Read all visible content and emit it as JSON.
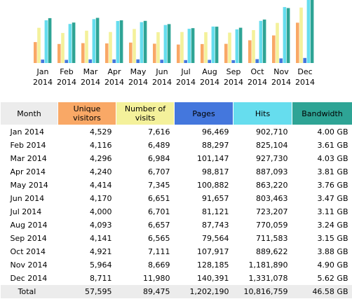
{
  "colors": {
    "visitors": "#f9a866",
    "visits": "#f4f19b",
    "pages": "#4477dd",
    "hits": "#66ddee",
    "bandwidth": "#2ea495",
    "header_bg": "#ececec",
    "total_bg": "#ececec"
  },
  "chart_data": {
    "type": "bar",
    "categories": [
      [
        "Jan",
        "2014"
      ],
      [
        "Feb",
        "2014"
      ],
      [
        "Mar",
        "2014"
      ],
      [
        "Apr",
        "2014"
      ],
      [
        "May",
        "2014"
      ],
      [
        "Jun",
        "2014"
      ],
      [
        "Jul",
        "2014"
      ],
      [
        "Aug",
        "2014"
      ],
      [
        "Sep",
        "2014"
      ],
      [
        "Oct",
        "2014"
      ],
      [
        "Nov",
        "2014"
      ],
      [
        "Dec",
        "2014"
      ]
    ],
    "series": [
      {
        "key": "visitors",
        "values": [
          4529,
          4116,
          4296,
          4240,
          4414,
          4170,
          4000,
          4093,
          4141,
          4921,
          5964,
          8711
        ]
      },
      {
        "key": "visits",
        "values": [
          7616,
          6489,
          6984,
          6707,
          7345,
          6651,
          6701,
          6657,
          6565,
          7111,
          8669,
          11980
        ]
      },
      {
        "key": "pages",
        "values": [
          96469,
          88297,
          101147,
          98817,
          100882,
          91657,
          81121,
          87743,
          79564,
          107917,
          128185,
          140391
        ]
      },
      {
        "key": "hits",
        "values": [
          902710,
          825104,
          927730,
          887093,
          863220,
          803463,
          723207,
          770059,
          711583,
          889622,
          1181890,
          1331078
        ]
      },
      {
        "key": "bandwidth",
        "values": [
          4.0,
          3.61,
          4.03,
          3.81,
          3.76,
          3.47,
          3.11,
          3.24,
          3.15,
          3.88,
          4.9,
          5.62
        ]
      }
    ],
    "grid": false,
    "legend": "none"
  },
  "table": {
    "headers": {
      "month": "Month",
      "visitors": [
        "Unique",
        "visitors"
      ],
      "visits": [
        "Number of",
        "visits"
      ],
      "pages": "Pages",
      "hits": "Hits",
      "bandwidth": "Bandwidth"
    },
    "rows": [
      [
        "Jan 2014",
        "4,529",
        "7,616",
        "96,469",
        "902,710",
        "4.00 GB"
      ],
      [
        "Feb 2014",
        "4,116",
        "6,489",
        "88,297",
        "825,104",
        "3.61 GB"
      ],
      [
        "Mar 2014",
        "4,296",
        "6,984",
        "101,147",
        "927,730",
        "4.03 GB"
      ],
      [
        "Apr 2014",
        "4,240",
        "6,707",
        "98,817",
        "887,093",
        "3.81 GB"
      ],
      [
        "May 2014",
        "4,414",
        "7,345",
        "100,882",
        "863,220",
        "3.76 GB"
      ],
      [
        "Jun 2014",
        "4,170",
        "6,651",
        "91,657",
        "803,463",
        "3.47 GB"
      ],
      [
        "Jul 2014",
        "4,000",
        "6,701",
        "81,121",
        "723,207",
        "3.11 GB"
      ],
      [
        "Aug 2014",
        "4,093",
        "6,657",
        "87,743",
        "770,059",
        "3.24 GB"
      ],
      [
        "Sep 2014",
        "4,141",
        "6,565",
        "79,564",
        "711,583",
        "3.15 GB"
      ],
      [
        "Oct 2014",
        "4,921",
        "7,111",
        "107,917",
        "889,622",
        "3.88 GB"
      ],
      [
        "Nov 2014",
        "5,964",
        "8,669",
        "128,185",
        "1,181,890",
        "4.90 GB"
      ],
      [
        "Dec 2014",
        "8,711",
        "11,980",
        "140,391",
        "1,331,078",
        "5.62 GB"
      ]
    ],
    "total": [
      "Total",
      "57,595",
      "89,475",
      "1,202,190",
      "10,816,759",
      "46.58 GB"
    ]
  }
}
